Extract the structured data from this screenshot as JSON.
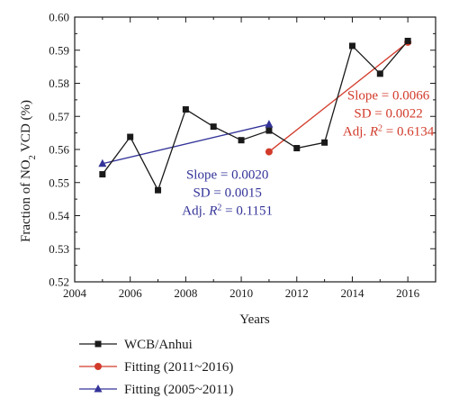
{
  "chart_data": {
    "type": "line",
    "xlabel": "Years",
    "ylabel_parts": {
      "pre": "Fraction of NO",
      "sub": "2",
      "post": " VCD (%)"
    },
    "xlim": [
      2004,
      2017
    ],
    "ylim": [
      0.52,
      0.6
    ],
    "xticks": [
      2004,
      2006,
      2008,
      2010,
      2012,
      2014,
      2016
    ],
    "xtick_labels": [
      "2004",
      "2006",
      "2008",
      "2010",
      "2012",
      "2014",
      "2016"
    ],
    "yticks": [
      0.52,
      0.53,
      0.54,
      0.55,
      0.56,
      0.57,
      0.58,
      0.59,
      0.6
    ],
    "ytick_labels": [
      "0.52",
      "0.53",
      "0.54",
      "0.55",
      "0.56",
      "0.57",
      "0.58",
      "0.59",
      "0.60"
    ],
    "grid": false,
    "legend_position": "below",
    "series": [
      {
        "name": "WCB/Anhui",
        "color": "#1a1a1a",
        "marker": "square",
        "x": [
          2005,
          2006,
          2007,
          2008,
          2009,
          2010,
          2011,
          2012,
          2013,
          2014,
          2015,
          2016
        ],
        "y": [
          0.5525,
          0.5638,
          0.5477,
          0.5721,
          0.5669,
          0.5628,
          0.5657,
          0.5604,
          0.5621,
          0.5913,
          0.5829,
          0.5928
        ]
      },
      {
        "name": "Fitting (2011~2016)",
        "color": "#d23a2a",
        "marker": "circle",
        "x": [
          2011,
          2016
        ],
        "y": [
          0.5593,
          0.5924
        ]
      },
      {
        "name": "Fitting (2005~2011)",
        "color": "#333399",
        "marker": "triangle",
        "x": [
          2005,
          2011
        ],
        "y": [
          0.5557,
          0.5676
        ]
      }
    ],
    "annotations": [
      {
        "color": "#d23a2a",
        "anchor_x": 2015.3,
        "anchor_y": 0.5751,
        "slope": "Slope = 0.0066",
        "sd": "SD = 0.0022",
        "r2_value": " = 0.6134"
      },
      {
        "color": "#333399",
        "anchor_x": 2009.5,
        "anchor_y": 0.5512,
        "slope": "Slope = 0.0020",
        "sd": "SD = 0.0015",
        "r2_value": " = 0.1151"
      }
    ],
    "r2_prefix": "Adj. ",
    "r2_symbol": "R",
    "r2_exponent": "2"
  }
}
